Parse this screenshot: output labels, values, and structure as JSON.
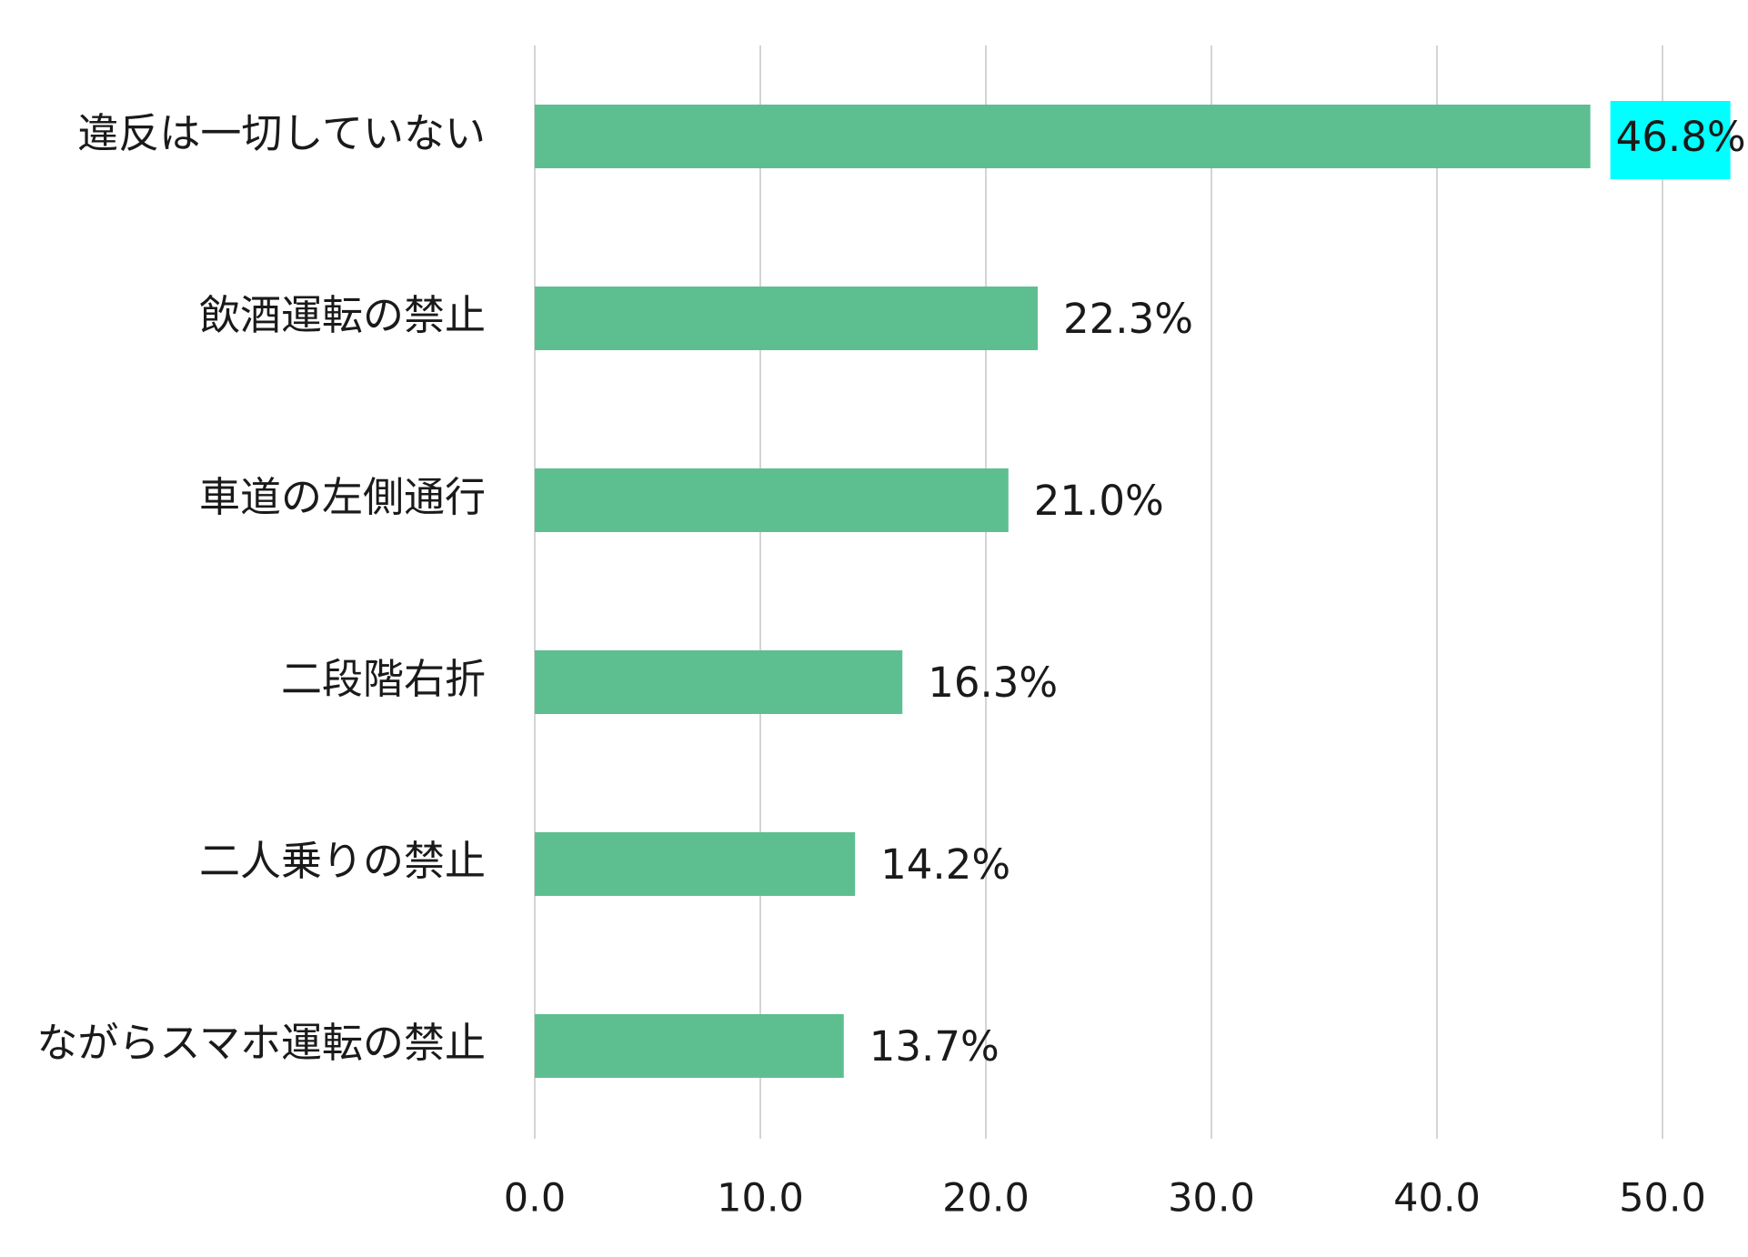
{
  "chart_data": {
    "type": "bar",
    "orientation": "horizontal",
    "categories": [
      "違反は一切していない",
      "飲酒運転の禁止",
      "車道の左側通行",
      "二段階右折",
      "二人乗りの禁止",
      "ながらスマホ運転の禁止"
    ],
    "values": [
      46.8,
      22.3,
      21.0,
      16.3,
      14.2,
      13.7
    ],
    "value_labels": [
      "46.8%",
      "22.3%",
      "21.0%",
      "16.3%",
      "14.2%",
      "13.7%"
    ],
    "highlighted_label_index": 0,
    "xlim": [
      0,
      50
    ],
    "x_ticks": [
      "0.0",
      "10.0",
      "20.0",
      "30.0",
      "40.0",
      "50.0"
    ],
    "x_tick_values": [
      0,
      10,
      20,
      30,
      40,
      50
    ],
    "grid": true,
    "bar_color": "#5dbf90",
    "highlight_color": "#00ffff",
    "title": "",
    "xlabel": "",
    "ylabel": ""
  }
}
